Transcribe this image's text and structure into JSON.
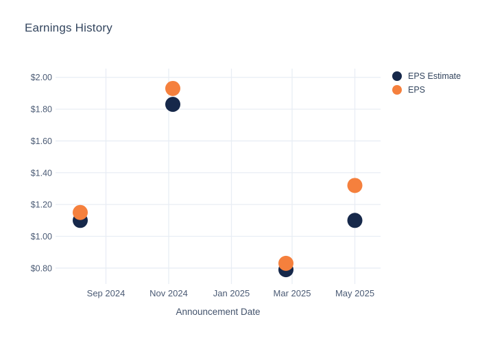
{
  "page": {
    "background": "#ffffff"
  },
  "chart_data": {
    "type": "scatter",
    "title": "Earnings History",
    "xlabel": "Announcement Date",
    "ylabel": "",
    "grid": true,
    "legend_position": "right",
    "x_range": [
      "2024-07-14",
      "2025-05-26"
    ],
    "y_range": [
      0.7,
      2.055
    ],
    "x_ticks": [
      {
        "date": "2024-09-01",
        "label": "Sep 2024"
      },
      {
        "date": "2024-11-01",
        "label": "Nov 2024"
      },
      {
        "date": "2025-01-01",
        "label": "Jan 2025"
      },
      {
        "date": "2025-03-01",
        "label": "Mar 2025"
      },
      {
        "date": "2025-05-01",
        "label": "May 2025"
      }
    ],
    "y_ticks": [
      {
        "value": 2.0,
        "label": "$2.00"
      },
      {
        "value": 1.8,
        "label": "$1.80"
      },
      {
        "value": 1.6,
        "label": "$1.60"
      },
      {
        "value": 1.4,
        "label": "$1.40"
      },
      {
        "value": 1.2,
        "label": "$1.20"
      },
      {
        "value": 1.0,
        "label": "$1.00"
      },
      {
        "value": 0.8,
        "label": "$0.80"
      }
    ],
    "series": [
      {
        "name": "EPS Estimate",
        "color": "#16284A",
        "points": [
          {
            "date": "2024-08-07",
            "value": 1.1
          },
          {
            "date": "2024-11-05",
            "value": 1.83
          },
          {
            "date": "2025-02-23",
            "value": 0.79
          },
          {
            "date": "2025-05-01",
            "value": 1.1
          }
        ]
      },
      {
        "name": "EPS",
        "color": "#F5803D",
        "points": [
          {
            "date": "2024-08-07",
            "value": 1.15
          },
          {
            "date": "2024-11-05",
            "value": 1.93
          },
          {
            "date": "2025-02-23",
            "value": 0.83
          },
          {
            "date": "2025-05-01",
            "value": 1.32
          }
        ]
      }
    ],
    "colors": {
      "gridline": "#E8EDF4",
      "title_text": "#33455E",
      "tick_text": "#4A5A74",
      "axis_title_text": "#42526B",
      "legend_text": "#33455E"
    }
  }
}
